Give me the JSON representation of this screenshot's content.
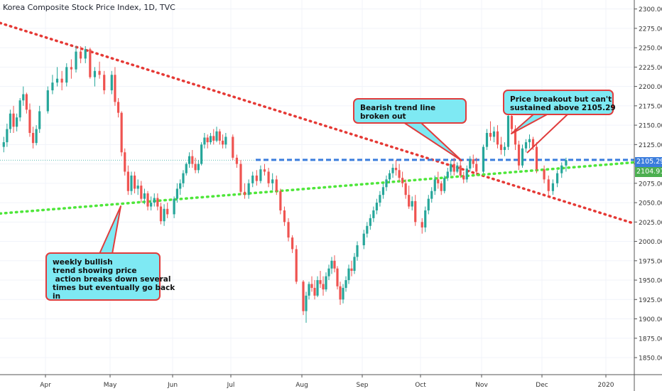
{
  "header": {
    "title": "Korea Composite Stock Price Index, 1D, TVC"
  },
  "price_tags": {
    "resistance": {
      "label": "2105.29",
      "color": "#3b7ddd"
    },
    "last": {
      "label": "2104.91",
      "color": "#26a69a"
    }
  },
  "annotations": {
    "weekly": {
      "lines": [
        "weekly bullish",
        "trend showing price",
        " action breaks down several",
        "times but eventually go back",
        "in"
      ]
    },
    "bearish": {
      "lines": [
        "Bearish trend line",
        "broken out"
      ]
    },
    "breakout": {
      "lines": [
        "Price breakout but can't",
        "sustained above 2105.29"
      ]
    }
  },
  "colors": {
    "up": "#26a69a",
    "down": "#ef5350",
    "bear_line": "#e53935",
    "bull_line": "#4ee63a",
    "resistance": "#3b7ddd",
    "callout_fill": "#7ee9f3",
    "callout_border": "#e03c3c"
  },
  "chart_data": {
    "type": "candlestick",
    "y_ticks": [
      1850,
      1875,
      1900,
      1925,
      1950,
      1975,
      2000,
      2025,
      2050,
      2075,
      2100,
      2125,
      2150,
      2175,
      2200,
      2225,
      2250,
      2275,
      2300
    ],
    "ylim": [
      1828,
      2307
    ],
    "x_labels": [
      "Apr",
      "May",
      "Jun",
      "Jul",
      "Aug",
      "Sep",
      "Oct",
      "Nov",
      "Dec",
      "2020"
    ],
    "resistance_level": 2105.29,
    "last_price": 2104.91,
    "bearish_trend_line": {
      "from": [
        "Mar 2019",
        2282
      ],
      "to": [
        "Jan 2020",
        2023
      ]
    },
    "bullish_trend_line": {
      "from": [
        "Mar 2019",
        2036
      ],
      "to": [
        "Jan 2020",
        2102
      ]
    },
    "candles_by_month": {
      "Mar": [
        [
          2122,
          2135,
          2115,
          2128
        ],
        [
          2128,
          2152,
          2122,
          2145
        ],
        [
          2145,
          2170,
          2140,
          2165
        ],
        [
          2165,
          2175,
          2140,
          2148
        ],
        [
          2148,
          2165,
          2142,
          2160
        ],
        [
          2160,
          2185,
          2155,
          2182
        ],
        [
          2182,
          2200,
          2175,
          2190
        ],
        [
          2190,
          2192,
          2165,
          2170
        ],
        [
          2170,
          2178,
          2135,
          2140
        ],
        [
          2140,
          2148,
          2120,
          2127
        ],
        [
          2127,
          2150,
          2124,
          2145
        ],
        [
          2145,
          2175,
          2140,
          2168
        ]
      ],
      "Apr": [
        [
          2168,
          2200,
          2165,
          2195
        ],
        [
          2195,
          2215,
          2190,
          2205
        ],
        [
          2205,
          2225,
          2200,
          2210
        ],
        [
          2210,
          2220,
          2195,
          2205
        ],
        [
          2205,
          2230,
          2200,
          2225
        ],
        [
          2225,
          2235,
          2210,
          2222
        ],
        [
          2222,
          2252,
          2218,
          2245
        ],
        [
          2245,
          2252,
          2230,
          2236
        ],
        [
          2236,
          2252,
          2230,
          2248
        ],
        [
          2248,
          2250,
          2210,
          2212
        ],
        [
          2212,
          2225,
          2200,
          2220
        ],
        [
          2220,
          2232,
          2210,
          2215
        ],
        [
          2215,
          2220,
          2190,
          2195
        ]
      ],
      "May": [
        [
          2195,
          2220,
          2190,
          2215
        ],
        [
          2215,
          2225,
          2175,
          2180
        ],
        [
          2180,
          2185,
          2160,
          2166
        ],
        [
          2166,
          2168,
          2110,
          2115
        ],
        [
          2115,
          2120,
          2085,
          2090
        ],
        [
          2090,
          2098,
          2060,
          2065
        ],
        [
          2065,
          2090,
          2060,
          2085
        ],
        [
          2085,
          2090,
          2062,
          2068
        ],
        [
          2068,
          2080,
          2060,
          2072
        ],
        [
          2072,
          2078,
          2050,
          2055
        ],
        [
          2055,
          2068,
          2048,
          2062
        ],
        [
          2062,
          2065,
          2040,
          2045
        ],
        [
          2045,
          2058,
          2040,
          2050
        ],
        [
          2050,
          2062,
          2045,
          2056
        ],
        [
          2056,
          2062,
          2040,
          2045
        ],
        [
          2045,
          2050,
          2022,
          2026
        ],
        [
          2026,
          2048,
          2020,
          2042
        ],
        [
          2042,
          2050,
          2030,
          2035
        ]
      ],
      "Jun": [
        [
          2035,
          2058,
          2030,
          2055
        ],
        [
          2055,
          2075,
          2050,
          2068
        ],
        [
          2068,
          2080,
          2060,
          2075
        ],
        [
          2075,
          2092,
          2070,
          2088
        ],
        [
          2088,
          2102,
          2085,
          2100
        ],
        [
          2100,
          2115,
          2095,
          2110
        ],
        [
          2110,
          2118,
          2095,
          2100
        ],
        [
          2100,
          2108,
          2088,
          2092
        ],
        [
          2092,
          2105,
          2088,
          2100
        ],
        [
          2100,
          2128,
          2098,
          2125
        ],
        [
          2125,
          2140,
          2120,
          2134
        ],
        [
          2134,
          2138,
          2120,
          2128
        ],
        [
          2128,
          2140,
          2125,
          2136
        ],
        [
          2136,
          2145,
          2125,
          2130
        ],
        [
          2130,
          2148,
          2128,
          2142
        ],
        [
          2142,
          2145,
          2125,
          2130
        ],
        [
          2130,
          2138,
          2120,
          2125
        ],
        [
          2125,
          2140,
          2120,
          2135
        ]
      ],
      "Jul": [
        [
          2135,
          2138,
          2105,
          2108
        ],
        [
          2108,
          2112,
          2095,
          2100
        ],
        [
          2100,
          2105,
          2060,
          2064
        ],
        [
          2064,
          2075,
          2055,
          2060
        ],
        [
          2060,
          2080,
          2055,
          2075
        ],
        [
          2075,
          2090,
          2070,
          2085
        ],
        [
          2085,
          2092,
          2072,
          2078
        ],
        [
          2078,
          2098,
          2075,
          2093
        ],
        [
          2093,
          2100,
          2085,
          2090
        ],
        [
          2090,
          2095,
          2070,
          2075
        ],
        [
          2075,
          2088,
          2066,
          2080
        ],
        [
          2080,
          2085,
          2060,
          2065
        ],
        [
          2065,
          2068,
          2035,
          2040
        ],
        [
          2040,
          2045,
          2020,
          2025
        ],
        [
          2025,
          2030,
          2000,
          2005
        ],
        [
          2005,
          2008,
          1985,
          1990
        ],
        [
          1990,
          1995,
          1945,
          1948
        ]
      ],
      "Aug": [
        [
          1948,
          1950,
          1905,
          1910
        ],
        [
          1910,
          1935,
          1895,
          1930
        ],
        [
          1930,
          1948,
          1925,
          1945
        ],
        [
          1945,
          1955,
          1935,
          1940
        ],
        [
          1940,
          1950,
          1925,
          1930
        ],
        [
          1930,
          1955,
          1928,
          1950
        ],
        [
          1950,
          1962,
          1940,
          1945
        ],
        [
          1945,
          1955,
          1930,
          1938
        ],
        [
          1938,
          1960,
          1935,
          1955
        ],
        [
          1955,
          1970,
          1950,
          1965
        ],
        [
          1965,
          1980,
          1958,
          1975
        ],
        [
          1975,
          1982,
          1960,
          1965
        ],
        [
          1965,
          1968,
          1938,
          1942
        ],
        [
          1942,
          1948,
          1918,
          1925
        ],
        [
          1925,
          1945,
          1920,
          1940
        ],
        [
          1940,
          1955,
          1935,
          1950
        ],
        [
          1950,
          1970,
          1945,
          1965
        ],
        [
          1965,
          1975,
          1955,
          1962
        ],
        [
          1962,
          1985,
          1958,
          1980
        ],
        [
          1980,
          2000,
          1975,
          1995
        ]
      ],
      "Sep": [
        [
          1995,
          2015,
          1990,
          2010
        ],
        [
          2010,
          2025,
          2005,
          2020
        ],
        [
          2020,
          2035,
          2015,
          2030
        ],
        [
          2030,
          2045,
          2025,
          2040
        ],
        [
          2040,
          2055,
          2035,
          2050
        ],
        [
          2050,
          2065,
          2045,
          2060
        ],
        [
          2060,
          2075,
          2055,
          2070
        ],
        [
          2070,
          2085,
          2065,
          2080
        ],
        [
          2080,
          2092,
          2075,
          2088
        ],
        [
          2088,
          2100,
          2082,
          2095
        ],
        [
          2095,
          2105,
          2085,
          2092
        ],
        [
          2092,
          2100,
          2078,
          2082
        ],
        [
          2082,
          2090,
          2070,
          2075
        ],
        [
          2075,
          2080,
          2055,
          2060
        ],
        [
          2060,
          2072,
          2042,
          2045
        ],
        [
          2045,
          2058,
          2040,
          2052
        ],
        [
          2052,
          2060,
          2020,
          2025
        ]
      ],
      "Oct": [
        [
          2025,
          2030,
          2010,
          2018
        ],
        [
          2018,
          2045,
          2012,
          2040
        ],
        [
          2040,
          2060,
          2035,
          2055
        ],
        [
          2055,
          2070,
          2050,
          2065
        ],
        [
          2065,
          2085,
          2060,
          2080
        ],
        [
          2080,
          2090,
          2068,
          2075
        ],
        [
          2075,
          2078,
          2060,
          2065
        ],
        [
          2065,
          2085,
          2062,
          2082
        ],
        [
          2082,
          2095,
          2078,
          2090
        ],
        [
          2090,
          2105,
          2085,
          2100
        ],
        [
          2100,
          2108,
          2085,
          2090
        ],
        [
          2090,
          2102,
          2088,
          2098
        ],
        [
          2098,
          2105,
          2082,
          2085
        ],
        [
          2085,
          2090,
          2075,
          2080
        ],
        [
          2080,
          2098,
          2076,
          2094
        ],
        [
          2094,
          2110,
          2090,
          2106
        ],
        [
          2106,
          2112,
          2095,
          2100
        ],
        [
          2100,
          2108,
          2085,
          2090
        ]
      ],
      "Nov": [
        [
          2090,
          2125,
          2088,
          2122
        ],
        [
          2122,
          2145,
          2118,
          2140
        ],
        [
          2140,
          2155,
          2130,
          2135
        ],
        [
          2135,
          2148,
          2128,
          2142
        ],
        [
          2142,
          2150,
          2120,
          2125
        ],
        [
          2125,
          2135,
          2112,
          2118
        ],
        [
          2118,
          2128,
          2110,
          2122
        ],
        [
          2122,
          2168,
          2118,
          2162
        ],
        [
          2162,
          2165,
          2140,
          2145
        ],
        [
          2145,
          2150,
          2118,
          2125
        ],
        [
          2125,
          2130,
          2092,
          2098
        ],
        [
          2098,
          2125,
          2095,
          2120
        ],
        [
          2120,
          2132,
          2115,
          2128
        ],
        [
          2128,
          2138,
          2120,
          2132
        ],
        [
          2132,
          2135,
          2118,
          2122
        ],
        [
          2122,
          2128,
          2088,
          2093
        ]
      ],
      "Dec": [
        [
          2093,
          2098,
          2075,
          2080
        ],
        [
          2080,
          2085,
          2058,
          2065
        ],
        [
          2065,
          2080,
          2060,
          2075
        ],
        [
          2075,
          2092,
          2070,
          2088
        ],
        [
          2088,
          2102,
          2082,
          2098
        ],
        [
          2098,
          2108,
          2090,
          2105
        ]
      ]
    }
  }
}
